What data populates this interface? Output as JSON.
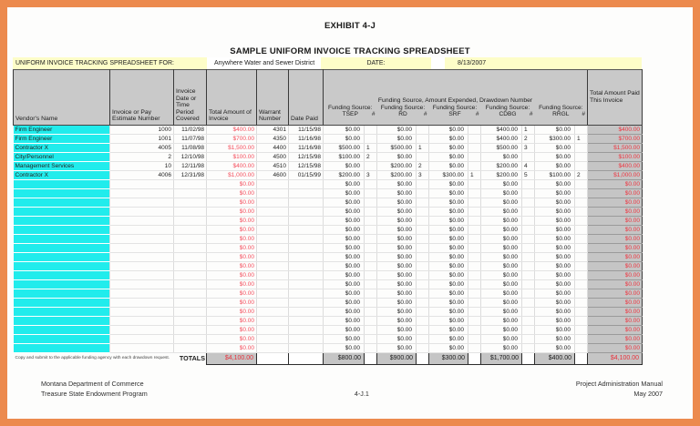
{
  "page": {
    "exhibit_title": "EXHIBIT 4-J",
    "subtitle": "SAMPLE UNIFORM INVOICE TRACKING SPREADSHEET"
  },
  "info_bar": {
    "label": "UNIFORM INVOICE TRACKING SPREADSHEET FOR:",
    "entity": "Anywhere Water and Sewer District",
    "date_label": "DATE:",
    "date_value": "8/13/2007"
  },
  "table": {
    "headers": {
      "vendor": "Vendor's Name",
      "invoice_number": "Invoice or Pay Estimate Number",
      "period": "Invoice Date or Time Period Covered",
      "invoice_amount": "Total Amount of Invoice",
      "warrant": "Warrant Number",
      "date_paid": "Date Paid",
      "funding_group": "Funding Source, Amount Expended, Drawdown Number",
      "funding_label": "Funding Source:",
      "funding_sources": [
        "TSEP",
        "RD",
        "SRF",
        "CDBG",
        "RRGL"
      ],
      "number_sign": "#",
      "total_paid": "Total Amount Paid This Invoice"
    },
    "rows": [
      {
        "vendor": "Firm Engineer",
        "invoice_number": "1000",
        "period": "11/02/98",
        "invoice_amount": "$400.00",
        "warrant": "4301",
        "date_paid": "11/15/98",
        "funding": [
          [
            "$0.00",
            ""
          ],
          [
            "$0.00",
            ""
          ],
          [
            "$0.00",
            ""
          ],
          [
            "$400.00",
            "1"
          ],
          [
            "$0.00",
            ""
          ]
        ],
        "total_paid": "$400.00"
      },
      {
        "vendor": "Firm Engineer",
        "invoice_number": "1001",
        "period": "11/07/98",
        "invoice_amount": "$700.00",
        "warrant": "4350",
        "date_paid": "11/16/98",
        "funding": [
          [
            "$0.00",
            ""
          ],
          [
            "$0.00",
            ""
          ],
          [
            "$0.00",
            ""
          ],
          [
            "$400.00",
            "2"
          ],
          [
            "$300.00",
            "1"
          ]
        ],
        "total_paid": "$700.00"
      },
      {
        "vendor": "Contractor X",
        "invoice_number": "4005",
        "period": "11/08/98",
        "invoice_amount": "$1,500.00",
        "warrant": "4400",
        "date_paid": "11/16/98",
        "funding": [
          [
            "$500.00",
            "1"
          ],
          [
            "$500.00",
            "1"
          ],
          [
            "$0.00",
            ""
          ],
          [
            "$500.00",
            "3"
          ],
          [
            "$0.00",
            ""
          ]
        ],
        "total_paid": "$1,500.00"
      },
      {
        "vendor": "City/Personnel",
        "invoice_number": "2",
        "period": "12/10/98",
        "invoice_amount": "$100.00",
        "warrant": "4500",
        "date_paid": "12/15/98",
        "funding": [
          [
            "$100.00",
            "2"
          ],
          [
            "$0.00",
            ""
          ],
          [
            "$0.00",
            ""
          ],
          [
            "$0.00",
            ""
          ],
          [
            "$0.00",
            ""
          ]
        ],
        "total_paid": "$100.00"
      },
      {
        "vendor": "Management Services",
        "invoice_number": "10",
        "period": "12/11/98",
        "invoice_amount": "$400.00",
        "warrant": "4510",
        "date_paid": "12/15/98",
        "funding": [
          [
            "$0.00",
            ""
          ],
          [
            "$200.00",
            "2"
          ],
          [
            "$0.00",
            ""
          ],
          [
            "$200.00",
            "4"
          ],
          [
            "$0.00",
            ""
          ]
        ],
        "total_paid": "$400.00"
      },
      {
        "vendor": "Contractor X",
        "invoice_number": "4006",
        "period": "12/31/98",
        "invoice_amount": "$1,000.00",
        "warrant": "4600",
        "date_paid": "01/15/99",
        "funding": [
          [
            "$200.00",
            "3"
          ],
          [
            "$200.00",
            "3"
          ],
          [
            "$300.00",
            "1"
          ],
          [
            "$200.00",
            "5"
          ],
          [
            "$100.00",
            "2"
          ]
        ],
        "total_paid": "$1,000.00"
      }
    ],
    "empty_row": {
      "invoice_amount": "$0.00",
      "funding_amount": "$0.00",
      "total_paid": "$0.00"
    },
    "empty_row_count": 19,
    "totals": {
      "note": "Copy and submit to the applicable funding agency with each drawdown request.",
      "label": "TOTALS",
      "invoice_amount": "$4,100.00",
      "funding": [
        "$800.00",
        "$900.00",
        "$300.00",
        "$1,700.00",
        "$400.00"
      ],
      "total_paid": "$4,100.00"
    }
  },
  "footer": {
    "left_line1": "Montana Department of Commerce",
    "left_line2": "Treasure State Endowment Program",
    "center": "4-J.1",
    "right_line1": "Project Administration Manual",
    "right_line2": "May 2007"
  },
  "colors": {
    "frame_orange": "#ec8a4e",
    "bar_yellow": "#fdfdc8",
    "header_gray": "#c9c9c9",
    "vendor_cyan": "#21ecec",
    "invoice_amount_red": "#f44d5c",
    "total_paid_red": "#ee3540"
  }
}
